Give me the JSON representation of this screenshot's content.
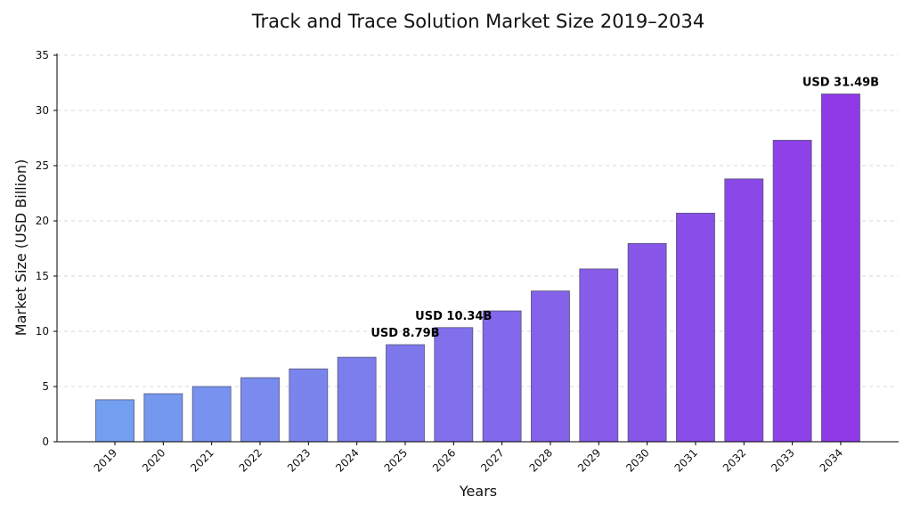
{
  "chart_data": {
    "type": "bar",
    "title": "Track and Trace Solution Market Size 2019–2034",
    "xlabel": "Years",
    "ylabel": "Market Size (USD Billion)",
    "ylim": [
      0,
      35
    ],
    "yticks": [
      0,
      5,
      10,
      15,
      20,
      25,
      30,
      35
    ],
    "grid": true,
    "categories": [
      "2019",
      "2020",
      "2021",
      "2022",
      "2023",
      "2024",
      "2025",
      "2026",
      "2027",
      "2028",
      "2029",
      "2030",
      "2031",
      "2032",
      "2033",
      "2034"
    ],
    "values": [
      3.8,
      4.35,
      5.0,
      5.8,
      6.6,
      7.65,
      8.79,
      10.34,
      11.85,
      13.65,
      15.65,
      17.95,
      20.7,
      23.8,
      27.3,
      31.49
    ],
    "color_start": "#739ff0",
    "color_end": "#8f3ae6",
    "annotations": [
      {
        "category": "2025",
        "text": "USD 8.79B"
      },
      {
        "category": "2026",
        "text": "USD 10.34B"
      },
      {
        "category": "2034",
        "text": "USD 31.49B"
      }
    ]
  }
}
